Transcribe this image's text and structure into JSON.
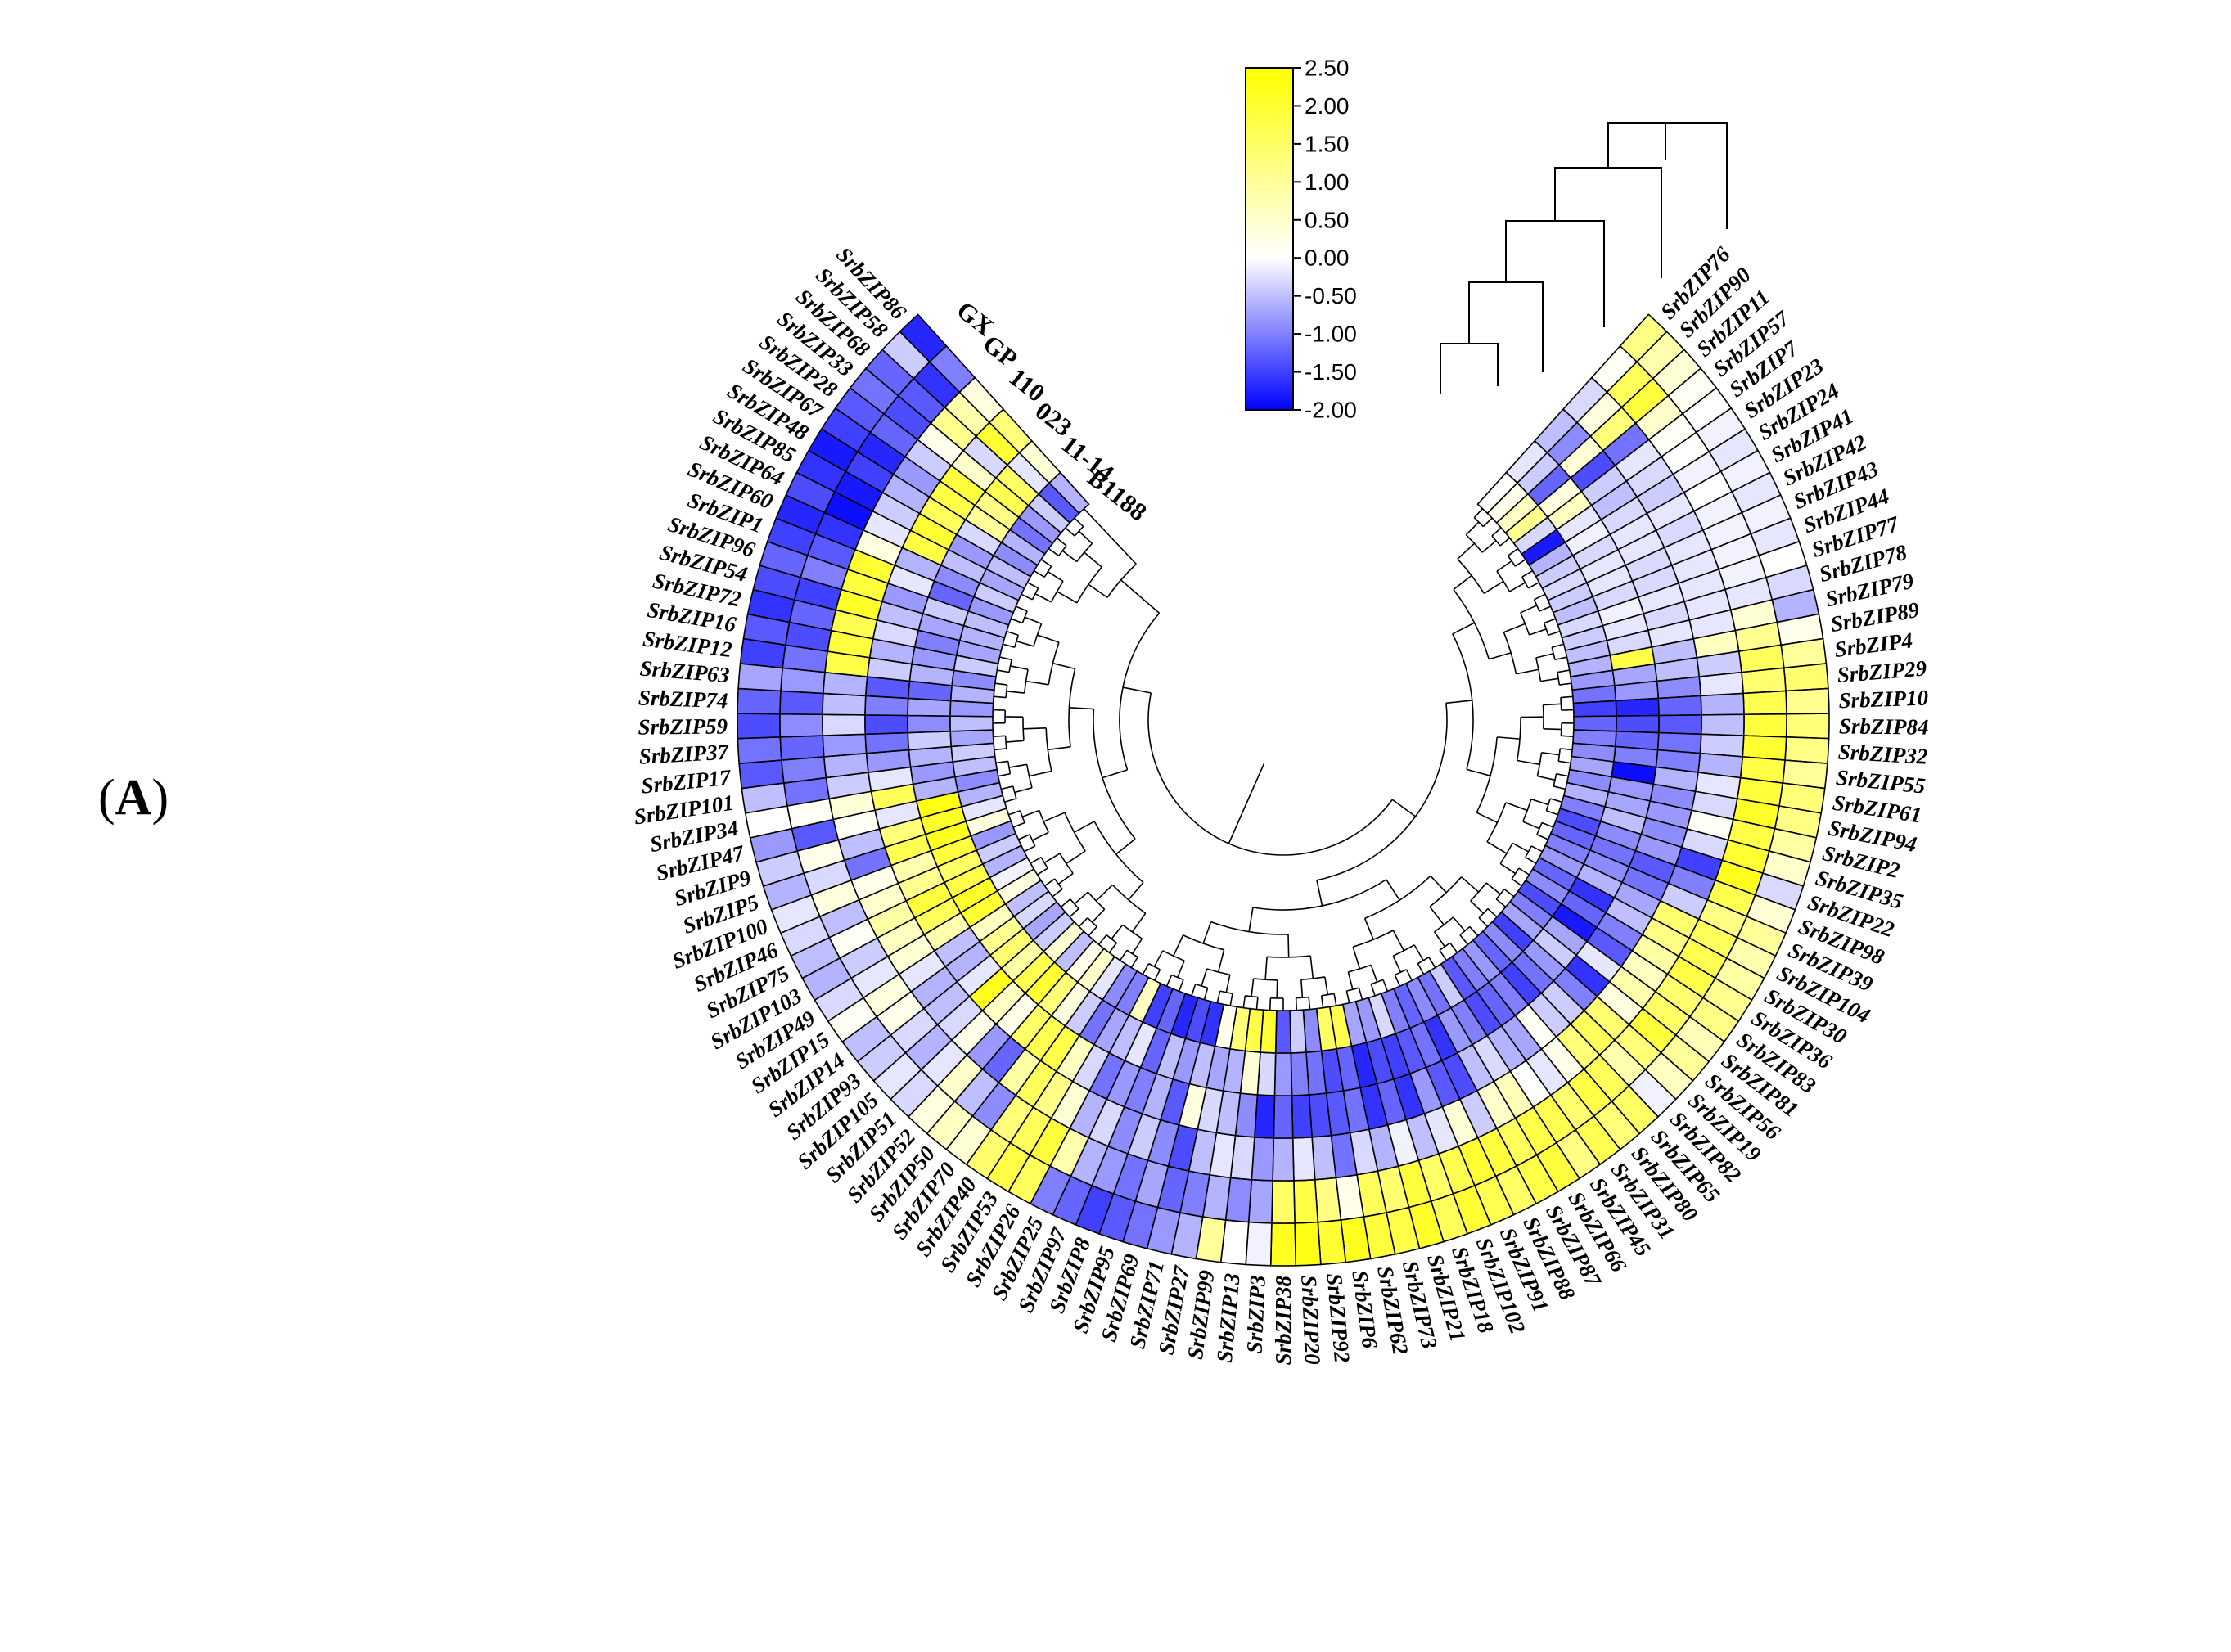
{
  "panel_label": {
    "open": "(",
    "letter": "A",
    "close": ")"
  },
  "chart_data": {
    "type": "heatmap",
    "layout": "circular",
    "title": "",
    "columns": [
      "GX",
      "GP",
      "110",
      "023",
      "11-14",
      "B1188"
    ],
    "genes": [
      "SrbZIP76",
      "SrbZIP90",
      "SrbZIP11",
      "SrbZIP57",
      "SrbZIP7",
      "SrbZIP23",
      "SrbZIP24",
      "SrbZIP41",
      "SrbZIP42",
      "SrbZIP43",
      "SrbZIP44",
      "SrbZIP77",
      "SrbZIP78",
      "SrbZIP79",
      "SrbZIP89",
      "SrbZIP4",
      "SrbZIP29",
      "SrbZIP10",
      "SrbZIP84",
      "SrbZIP32",
      "SrbZIP55",
      "SrbZIP61",
      "SrbZIP94",
      "SrbZIP2",
      "SrbZIP35",
      "SrbZIP22",
      "SrbZIP98",
      "SrbZIP39",
      "SrbZIP104",
      "SrbZIP30",
      "SrbZIP36",
      "SrbZIP83",
      "SrbZIP81",
      "SrbZIP56",
      "SrbZIP19",
      "SrbZIP82",
      "SrbZIP65",
      "SrbZIP80",
      "SrbZIP31",
      "SrbZIP45",
      "SrbZIP66",
      "SrbZIP87",
      "SrbZIP88",
      "SrbZIP91",
      "SrbZIP102",
      "SrbZIP18",
      "SrbZIP21",
      "SrbZIP73",
      "SrbZIP62",
      "SrbZIP6",
      "SrbZIP92",
      "SrbZIP20",
      "SrbZIP38",
      "SrbZIP3",
      "SrbZIP13",
      "SrbZIP99",
      "SrbZIP27",
      "SrbZIP71",
      "SrbZIP69",
      "SrbZIP95",
      "SrbZIP8",
      "SrbZIP97",
      "SrbZIP25",
      "SrbZIP26",
      "SrbZIP53",
      "SrbZIP40",
      "SrbZIP70",
      "SrbZIP50",
      "SrbZIP52",
      "SrbZIP51",
      "SrbZIP105",
      "SrbZIP93",
      "SrbZIP14",
      "SrbZIP15",
      "SrbZIP49",
      "SrbZIP103",
      "SrbZIP75",
      "SrbZIP46",
      "SrbZIP100",
      "SrbZIP5",
      "SrbZIP9",
      "SrbZIP47",
      "SrbZIP34",
      "SrbZIP101",
      "SrbZIP17",
      "SrbZIP37",
      "SrbZIP59",
      "SrbZIP74",
      "SrbZIP63",
      "SrbZIP12",
      "SrbZIP16",
      "SrbZIP72",
      "SrbZIP54",
      "SrbZIP96",
      "SrbZIP1",
      "SrbZIP60",
      "SrbZIP64",
      "SrbZIP85",
      "SrbZIP48",
      "SrbZIP67",
      "SrbZIP28",
      "SrbZIP33",
      "SrbZIP68",
      "SrbZIP58",
      "SrbZIP86"
    ],
    "values": [
      [
        1.2,
        0.1,
        -0.3,
        -0.5,
        -0.2,
        0.0
      ],
      [
        0.8,
        1.6,
        0.3,
        -0.9,
        -0.4,
        0.2
      ],
      [
        0.4,
        1.9,
        1.3,
        0.4,
        -1.2,
        0.6
      ],
      [
        0.1,
        0.5,
        -1.1,
        -1.4,
        0.3,
        1.1
      ],
      [
        0.0,
        0.1,
        -0.2,
        -0.4,
        0.6,
        -0.3
      ],
      [
        -0.1,
        0.0,
        -0.3,
        -0.5,
        -0.2,
        -1.8
      ],
      [
        -0.2,
        -0.1,
        -0.4,
        -0.3,
        -0.1,
        -0.6
      ],
      [
        -0.1,
        0.0,
        -0.2,
        -0.2,
        -0.3,
        -0.4
      ],
      [
        -0.2,
        -0.1,
        -0.3,
        -0.2,
        -0.2,
        -0.3
      ],
      [
        -0.1,
        -0.1,
        -0.2,
        -0.3,
        -0.2,
        -0.4
      ],
      [
        -0.2,
        -0.1,
        -0.2,
        -0.3,
        -0.3,
        -0.5
      ],
      [
        0.0,
        -0.1,
        -0.2,
        -0.2,
        -0.1,
        -0.3
      ],
      [
        -0.3,
        -0.2,
        -0.2,
        -0.3,
        -0.2,
        -0.4
      ],
      [
        -0.6,
        0.4,
        -0.2,
        -0.2,
        -0.3,
        -0.5
      ],
      [
        0.2,
        1.1,
        0.6,
        -0.5,
        1.8,
        -0.6
      ],
      [
        1.0,
        1.6,
        -0.4,
        -0.5,
        -0.7,
        -0.8
      ],
      [
        1.4,
        1.4,
        -0.2,
        -0.9,
        -0.8,
        -1.1
      ],
      [
        1.1,
        1.7,
        -0.6,
        -1.2,
        -1.7,
        -1.5
      ],
      [
        1.3,
        1.9,
        -0.5,
        -1.3,
        -1.4,
        -1.2
      ],
      [
        1.2,
        2.0,
        -0.4,
        -1.1,
        -1.2,
        -1.0
      ],
      [
        1.0,
        1.8,
        -0.6,
        -1.0,
        -1.0,
        -0.9
      ],
      [
        1.3,
        1.9,
        -0.2,
        -0.6,
        -1.9,
        -0.7
      ],
      [
        1.2,
        2.1,
        -0.3,
        -0.9,
        -0.8,
        -0.9
      ],
      [
        0.9,
        1.8,
        0.1,
        -0.8,
        -0.7,
        -0.6
      ],
      [
        0.5,
        2.0,
        -0.3,
        -0.9,
        -0.5,
        -1.0
      ],
      [
        -0.3,
        2.2,
        -1.5,
        -0.8,
        -0.9,
        -1.4
      ],
      [
        0.4,
        1.7,
        -1.0,
        -1.3,
        -1.1,
        -1.2
      ],
      [
        1.0,
        1.2,
        -0.4,
        -1.1,
        -0.9,
        -1.0
      ],
      [
        0.8,
        1.6,
        1.4,
        -0.7,
        -0.6,
        -0.8
      ],
      [
        0.9,
        1.7,
        1.2,
        -0.5,
        -1.6,
        -1.2
      ],
      [
        1.1,
        1.8,
        0.9,
        -1.0,
        -1.2,
        -0.9
      ],
      [
        1.2,
        1.4,
        0.6,
        -1.3,
        -1.8,
        -1.4
      ],
      [
        0.7,
        1.5,
        0.8,
        -0.2,
        -0.7,
        -1.0
      ],
      [
        1.0,
        1.9,
        0.3,
        -1.6,
        -0.4,
        -0.7
      ],
      [
        0.6,
        1.3,
        1.4,
        -1.0,
        -0.8,
        -1.5
      ],
      [
        -0.1,
        0.8,
        1.6,
        -0.4,
        -1.1,
        -0.9
      ],
      [
        1.5,
        1.6,
        1.3,
        -0.4,
        -1.5,
        -1.2
      ],
      [
        1.3,
        1.8,
        0.2,
        0.1,
        -1.0,
        -0.8
      ],
      [
        1.7,
        1.4,
        -0.2,
        -0.7,
        -1.2,
        -1.0
      ],
      [
        1.2,
        1.7,
        0.0,
        -0.6,
        -1.4,
        -1.3
      ],
      [
        1.9,
        1.8,
        0.7,
        -0.3,
        -1.0,
        -0.4
      ],
      [
        1.8,
        1.6,
        0.5,
        -0.5,
        -0.8,
        -1.1
      ],
      [
        1.5,
        1.9,
        -0.4,
        -1.4,
        -1.6,
        -0.9
      ],
      [
        1.7,
        2.0,
        0.4,
        -1.3,
        -1.1,
        -1.2
      ],
      [
        2.0,
        1.7,
        -0.2,
        -0.8,
        -1.3,
        -1.0
      ],
      [
        1.6,
        1.5,
        -0.5,
        -1.6,
        -1.5,
        -0.3
      ],
      [
        2.1,
        1.9,
        -0.1,
        -1.2,
        -1.4,
        -0.8
      ],
      [
        1.8,
        1.4,
        -0.6,
        -1.6,
        -1.7,
        -0.7
      ],
      [
        1.9,
        1.6,
        -0.3,
        -1.1,
        -1.2,
        1.7
      ],
      [
        2.2,
        0.2,
        -1.1,
        -1.3,
        -1.4,
        1.5
      ],
      [
        2.0,
        1.2,
        -0.5,
        -1.4,
        -1.1,
        -0.9
      ],
      [
        2.3,
        1.8,
        -0.2,
        -1.5,
        -1.0,
        -0.4
      ],
      [
        2.2,
        1.5,
        -0.6,
        -1.2,
        -0.8,
        -1.3
      ],
      [
        -0.1,
        -0.7,
        -0.8,
        -1.7,
        -0.3,
        2.0
      ],
      [
        0.0,
        -0.9,
        -0.3,
        -0.9,
        0.4,
        1.8
      ],
      [
        1.0,
        -0.6,
        -0.2,
        -0.5,
        -0.6,
        1.3
      ],
      [
        -0.6,
        -1.0,
        -0.5,
        -0.3,
        -0.7,
        0.2
      ],
      [
        -0.8,
        -1.2,
        -1.4,
        0.3,
        -0.5,
        -1.6
      ],
      [
        -1.1,
        -0.7,
        -0.9,
        -1.3,
        -0.8,
        -1.4
      ],
      [
        -1.3,
        -1.1,
        -0.4,
        -0.6,
        -0.5,
        -1.7
      ],
      [
        -1.5,
        -0.8,
        -0.9,
        -1.0,
        -1.2,
        -1.2
      ],
      [
        -1.2,
        -0.6,
        -0.3,
        -0.8,
        -0.2,
        -1.5
      ],
      [
        -1.0,
        0.8,
        -0.6,
        -1.1,
        -0.5,
        0.6
      ],
      [
        1.6,
        1.9,
        0.4,
        -0.3,
        -0.7,
        -1.0
      ],
      [
        1.8,
        1.6,
        1.2,
        0.6,
        -1.1,
        -0.9
      ],
      [
        1.4,
        1.3,
        1.6,
        1.8,
        -0.4,
        -0.2
      ],
      [
        0.4,
        -0.9,
        0.9,
        1.7,
        0.3,
        0.5
      ],
      [
        0.6,
        -0.5,
        -1.2,
        1.5,
        1.3,
        0.2
      ],
      [
        0.3,
        0.5,
        -0.8,
        0.2,
        2.0,
        -0.5
      ],
      [
        -0.3,
        -0.2,
        0.2,
        0.6,
        1.7,
        0.4
      ],
      [
        -0.2,
        -0.6,
        -0.3,
        2.2,
        0.9,
        -0.4
      ],
      [
        -0.4,
        -0.3,
        -0.5,
        -0.2,
        1.4,
        -0.7
      ],
      [
        -0.5,
        0.2,
        -0.6,
        -0.6,
        1.1,
        -0.3
      ],
      [
        0.1,
        0.3,
        -0.2,
        -0.5,
        0.6,
        -0.5
      ],
      [
        -0.3,
        -0.2,
        0.4,
        0.8,
        2.0,
        0.3
      ],
      [
        -0.6,
        -0.4,
        0.6,
        1.6,
        2.1,
        -0.1
      ],
      [
        -0.5,
        0.1,
        0.9,
        1.9,
        1.8,
        -0.6
      ],
      [
        -0.3,
        -0.5,
        0.5,
        1.1,
        1.5,
        -0.4
      ],
      [
        -0.2,
        0.3,
        0.2,
        0.8,
        1.9,
        -0.8
      ],
      [
        -0.6,
        -0.3,
        -1.1,
        1.7,
        2.2,
        0.3
      ],
      [
        -0.4,
        0.2,
        -0.5,
        1.3,
        2.1,
        -0.2
      ],
      [
        -0.8,
        -1.3,
        0.1,
        -0.2,
        2.3,
        -0.6
      ],
      [
        0.0,
        0.1,
        0.4,
        1.6,
        -0.6,
        -0.9
      ],
      [
        -0.5,
        -1.1,
        -0.4,
        -0.2,
        -0.8,
        -0.5
      ],
      [
        -1.3,
        -1.0,
        -0.6,
        -0.8,
        -0.6,
        -0.4
      ],
      [
        -1.1,
        -1.2,
        -0.8,
        -1.1,
        -0.4,
        -0.7
      ],
      [
        -1.4,
        -0.9,
        -0.3,
        -1.4,
        -0.9,
        -0.5
      ],
      [
        -1.2,
        -1.3,
        -0.5,
        -1.0,
        -0.7,
        -0.8
      ],
      [
        -0.7,
        -0.8,
        -0.6,
        -1.3,
        -1.2,
        -0.6
      ],
      [
        -1.5,
        -1.1,
        1.8,
        -0.4,
        -0.6,
        -0.9
      ],
      [
        -1.3,
        -1.4,
        1.9,
        -0.6,
        -0.8,
        -0.4
      ],
      [
        -1.6,
        -1.2,
        1.7,
        -0.3,
        -1.0,
        -0.7
      ],
      [
        -1.4,
        -1.5,
        2.1,
        -0.5,
        -0.7,
        -0.6
      ],
      [
        -1.2,
        -1.0,
        1.9,
        -0.8,
        -0.4,
        -0.5
      ],
      [
        -1.5,
        -1.3,
        2.0,
        -0.2,
        -1.2,
        -0.8
      ],
      [
        -1.7,
        -1.6,
        0.3,
        -0.6,
        -0.9,
        -0.4
      ],
      [
        -1.4,
        -1.9,
        -0.2,
        1.8,
        -0.5,
        -0.7
      ],
      [
        -1.6,
        -1.8,
        -0.4,
        2.0,
        -0.8,
        -0.5
      ],
      [
        -1.8,
        -1.5,
        -0.6,
        1.6,
        -0.3,
        -0.9
      ],
      [
        -1.5,
        -1.7,
        -0.8,
        1.8,
        1.0,
        -0.6
      ],
      [
        -1.3,
        -1.2,
        -0.4,
        1.9,
        1.2,
        -1.1
      ],
      [
        -1.1,
        -1.4,
        0.2,
        0.5,
        1.7,
        -0.8
      ],
      [
        -1.2,
        -1.3,
        1.1,
        -0.3,
        1.5,
        -0.4
      ],
      [
        -0.4,
        -1.6,
        0.8,
        2.0,
        -0.2,
        -1.3
      ],
      [
        -1.7,
        -1.0,
        0.3,
        1.3,
        0.4,
        -0.6
      ]
    ],
    "color_scale": {
      "min": -2.0,
      "max": 2.5,
      "stops": [
        {
          "value": -2.0,
          "color": "#0000ff"
        },
        {
          "value": 0.0,
          "color": "#ffffff"
        },
        {
          "value": 2.5,
          "color": "#ffff00"
        }
      ],
      "tick_labels": [
        "2.50",
        "2.00",
        "1.50",
        "1.00",
        "0.50",
        "0.00",
        "-0.50",
        "-1.00",
        "-1.50",
        "-2.00"
      ]
    },
    "legend_position": "top-center",
    "dendrogram": "inner-ring"
  }
}
